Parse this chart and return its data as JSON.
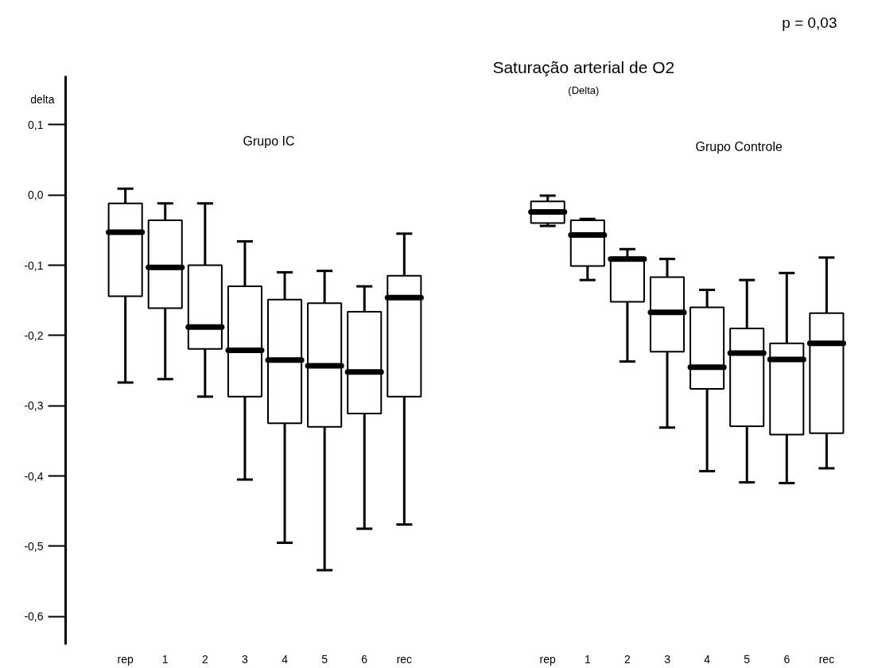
{
  "chart_data": {
    "type": "box",
    "title": "Saturação arterial de O2",
    "subtitle": "(Delta)",
    "ylabel": "delta",
    "annotations": [
      "p = 0,03",
      "Grupo IC",
      "Grupo Controle"
    ],
    "categories": [
      "rep",
      "1",
      "2",
      "3",
      "4",
      "5",
      "6",
      "rec",
      "rep",
      "1",
      "2",
      "3",
      "4",
      "5",
      "6",
      "rec"
    ],
    "boxes": [
      {
        "low": -0.267,
        "q1": -0.144,
        "median": -0.053,
        "q3": -0.012,
        "high": 0.009
      },
      {
        "low": -0.262,
        "q1": -0.161,
        "median": -0.103,
        "q3": -0.036,
        "high": -0.012
      },
      {
        "low": -0.287,
        "q1": -0.219,
        "median": -0.188,
        "q3": -0.1,
        "high": -0.012
      },
      {
        "low": -0.405,
        "q1": -0.287,
        "median": -0.221,
        "q3": -0.13,
        "high": -0.066
      },
      {
        "low": -0.495,
        "q1": -0.325,
        "median": -0.235,
        "q3": -0.149,
        "high": -0.11
      },
      {
        "low": -0.534,
        "q1": -0.33,
        "median": -0.243,
        "q3": -0.154,
        "high": -0.108
      },
      {
        "low": -0.475,
        "q1": -0.311,
        "median": -0.252,
        "q3": -0.166,
        "high": -0.13
      },
      {
        "low": -0.469,
        "q1": -0.287,
        "median": -0.146,
        "q3": -0.115,
        "high": -0.055
      },
      {
        "low": -0.044,
        "q1": -0.04,
        "median": -0.024,
        "q3": -0.009,
        "high": -0.001
      },
      {
        "low": -0.121,
        "q1": -0.101,
        "median": -0.057,
        "q3": -0.036,
        "high": -0.034
      },
      {
        "low": -0.237,
        "q1": -0.152,
        "median": -0.091,
        "q3": -0.089,
        "high": -0.077
      },
      {
        "low": -0.331,
        "q1": -0.223,
        "median": -0.167,
        "q3": -0.117,
        "high": -0.091
      },
      {
        "low": -0.393,
        "q1": -0.276,
        "median": -0.245,
        "q3": -0.16,
        "high": -0.135
      },
      {
        "low": -0.409,
        "q1": -0.329,
        "median": -0.225,
        "q3": -0.19,
        "high": -0.121
      },
      {
        "low": -0.41,
        "q1": -0.341,
        "median": -0.234,
        "q3": -0.211,
        "high": -0.111
      },
      {
        "low": -0.389,
        "q1": -0.339,
        "median": -0.211,
        "q3": -0.168,
        "high": -0.089
      }
    ],
    "ylim": [
      -0.64,
      0.17
    ],
    "yticks": [
      {
        "value": 0.1,
        "label": "0,1"
      },
      {
        "value": 0.0,
        "label": "0,0"
      },
      {
        "value": -0.1,
        "label": "-0,1"
      },
      {
        "value": -0.2,
        "label": "-0,2"
      },
      {
        "value": -0.3,
        "label": "-0,3"
      },
      {
        "value": -0.4,
        "label": "-0,4"
      },
      {
        "value": -0.5,
        "label": "-0,5"
      },
      {
        "value": -0.6,
        "label": "-0,6"
      }
    ]
  }
}
